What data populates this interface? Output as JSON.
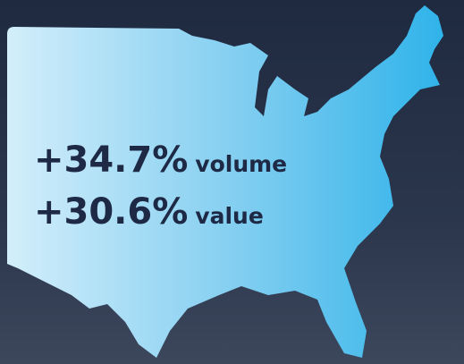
{
  "stats": [
    {
      "figure": "+34.7%",
      "label": "volume"
    },
    {
      "figure": "+30.6%",
      "label": "value"
    }
  ]
}
